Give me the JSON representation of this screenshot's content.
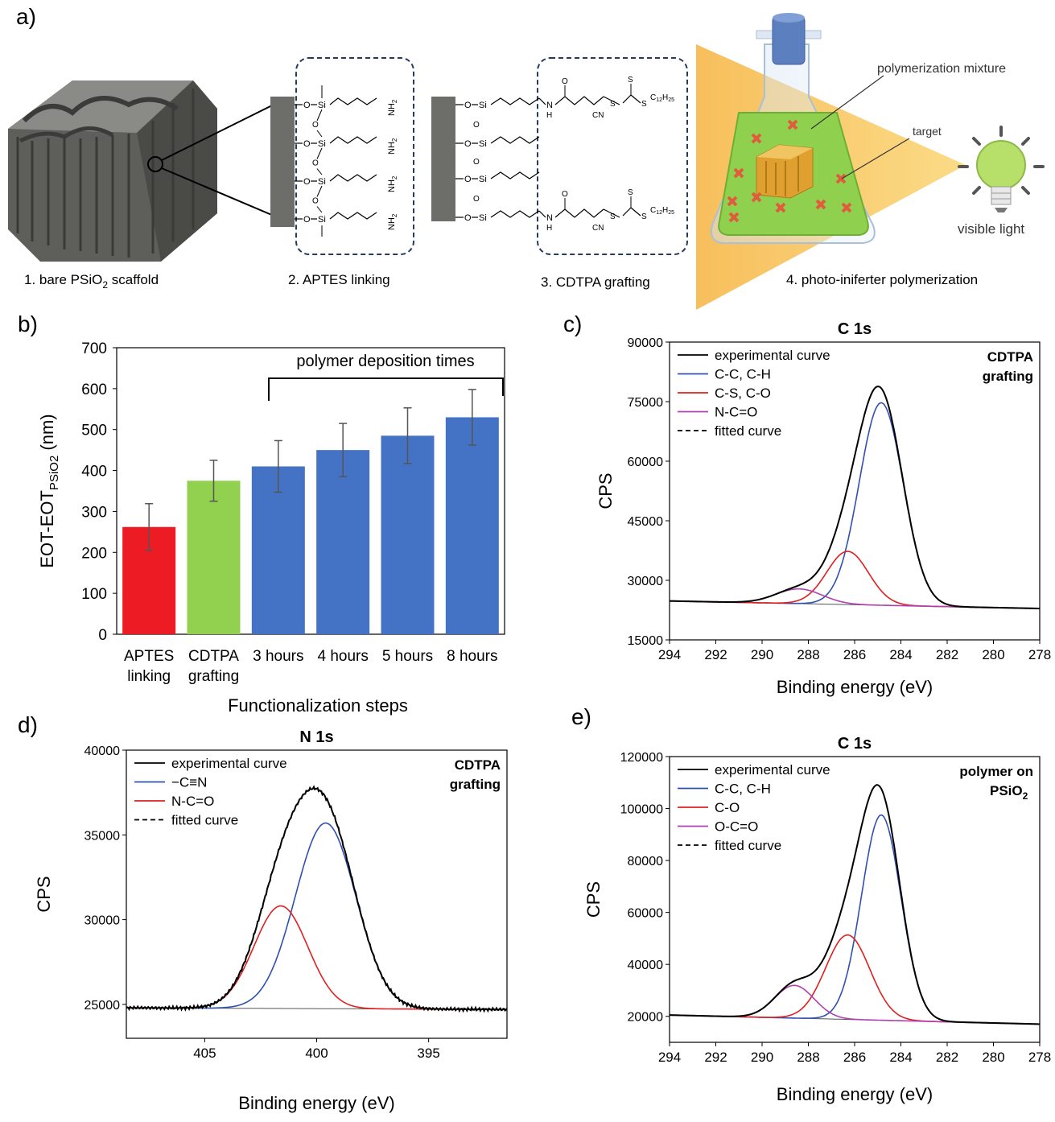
{
  "panel_letters": [
    "a)",
    "b)",
    "c)",
    "d)",
    "e)"
  ],
  "panel_a": {
    "step_labels": [
      "1. bare PSiO",
      "2",
      " scaffold",
      "2. APTES linking",
      "3. CDTPA grafting",
      "4. photo-iniferter polymerization"
    ],
    "annotations": [
      "polymerization mixture",
      "target",
      "visible light"
    ],
    "chem_text": {
      "o": "O",
      "si": "Si",
      "nh": "NH",
      "sub2": "2",
      "n": "N",
      "h": "H",
      "cn": "CN",
      "s": "S",
      "c12h25": "C12H25",
      "c": "C",
      "c_sub": "12",
      "h_sub": "25"
    },
    "colors": {
      "scaffold": "#6d6d6a",
      "light_cone": "#f7c35a",
      "flask_liquid": "#8fd14f",
      "target_cube": "#e0a030",
      "cross_marks": "#e05c3c",
      "bulb": "#b7e06b",
      "stopper": "#5b7fbf",
      "dashed_box": "#243a5e"
    }
  },
  "chart_data": [
    {
      "panel": "b)",
      "type": "bar",
      "categories": [
        [
          "APTES",
          "linking"
        ],
        [
          "CDTPA",
          "grafting"
        ],
        [
          "3 hours"
        ],
        [
          "4 hours"
        ],
        [
          "5 hours"
        ],
        [
          "8 hours"
        ]
      ],
      "values": [
        262,
        375,
        410,
        450,
        485,
        530
      ],
      "error": [
        57,
        50,
        63,
        65,
        68,
        68
      ],
      "colors": [
        "#ed1c24",
        "#92d050",
        "#4472c4",
        "#4472c4",
        "#4472c4",
        "#4472c4"
      ],
      "ylim": [
        0,
        700
      ],
      "yticks": [
        0,
        100,
        200,
        300,
        400,
        500,
        600,
        700
      ],
      "ylabel": {
        "main": "EOT-EOT",
        "sub": "PSiO2",
        "unit": " (nm)"
      },
      "xlabel": "Functionalization steps",
      "bracket_label": "polymer deposition times"
    },
    {
      "panel": "c)",
      "type": "line",
      "title": "C 1s",
      "xlabel": "Binding energy (eV)",
      "ylabel": "CPS",
      "xlim": [
        294,
        278
      ],
      "xticks": [
        294,
        292,
        290,
        288,
        286,
        284,
        282,
        280,
        278
      ],
      "ylim": [
        15000,
        90000
      ],
      "yticks": [
        15000,
        30000,
        45000,
        60000,
        75000,
        90000
      ],
      "corner_label": [
        "CDTPA",
        "grafting"
      ],
      "legend": "top-left",
      "baseline": {
        "x": [
          294,
          278
        ],
        "y": [
          24800,
          22900
        ]
      },
      "peaks": [
        {
          "name": "C-C, C-H",
          "center": 284.85,
          "height": 51000,
          "sigma": 0.95,
          "color": "#3050b0"
        },
        {
          "name": "C-S, C-O",
          "center": 286.3,
          "height": 13400,
          "sigma": 0.9,
          "color": "#e02020"
        },
        {
          "name": "N-C=O",
          "center": 288.4,
          "height": 3700,
          "sigma": 1.0,
          "color": "#b040b0"
        }
      ],
      "series": [
        {
          "name": "experimental curve",
          "color": "#000000",
          "dash": ""
        },
        {
          "name": "C-C, C-H",
          "color": "#3050b0",
          "dash": ""
        },
        {
          "name": "C-S, C-O",
          "color": "#e02020",
          "dash": ""
        },
        {
          "name": "N-C=O",
          "color": "#b040b0",
          "dash": ""
        },
        {
          "name": "fitted curve",
          "color": "#000000",
          "dash": "6,4"
        }
      ]
    },
    {
      "panel": "d)",
      "type": "line",
      "title": "N 1s",
      "xlabel": "Binding energy (eV)",
      "ylabel": "CPS",
      "xlim": [
        408.5,
        391.5
      ],
      "xticks": [
        405,
        400,
        395
      ],
      "ylim": [
        23000,
        40000
      ],
      "yticks": [
        25000,
        30000,
        35000,
        40000
      ],
      "corner_label": [
        "CDTPA",
        "grafting"
      ],
      "legend": "top-left",
      "baseline": {
        "x": [
          408.5,
          391.5
        ],
        "y": [
          24800,
          24700
        ]
      },
      "noise_amplitude": 60,
      "peaks": [
        {
          "name": "−C≡N",
          "center": 399.6,
          "height": 10950,
          "sigma": 1.35,
          "color": "#3050b0"
        },
        {
          "name": "N-C=O",
          "center": 401.6,
          "height": 6050,
          "sigma": 1.2,
          "color": "#e02020"
        }
      ],
      "series": [
        {
          "name": "experimental curve",
          "color": "#000000",
          "dash": ""
        },
        {
          "name": "−C≡N",
          "color": "#3050b0",
          "dash": ""
        },
        {
          "name": "N-C=O",
          "color": "#e02020",
          "dash": ""
        },
        {
          "name": "fitted curve",
          "color": "#000000",
          "dash": "6,4"
        }
      ]
    },
    {
      "panel": "e)",
      "type": "line",
      "title": "C 1s",
      "xlabel": "Binding energy (eV)",
      "ylabel": "CPS",
      "xlim": [
        294,
        278
      ],
      "xticks": [
        294,
        292,
        290,
        288,
        286,
        284,
        282,
        280,
        278
      ],
      "ylim": [
        10000,
        120000
      ],
      "yticks": [
        20000,
        40000,
        60000,
        80000,
        100000,
        120000
      ],
      "corner_label": [
        "polymer on",
        "PSiO",
        "2"
      ],
      "legend": "top-left",
      "baseline": {
        "x": [
          294,
          278
        ],
        "y": [
          20500,
          17000
        ]
      },
      "peaks": [
        {
          "name": "C-C, C-H",
          "center": 284.85,
          "height": 79000,
          "sigma": 0.85,
          "color": "#3050b0"
        },
        {
          "name": "C-O",
          "center": 286.3,
          "height": 32500,
          "sigma": 0.95,
          "color": "#e02020"
        },
        {
          "name": "O-C=O",
          "center": 288.6,
          "height": 12600,
          "sigma": 0.85,
          "color": "#b040b0"
        }
      ],
      "series": [
        {
          "name": "experimental curve",
          "color": "#000000",
          "dash": ""
        },
        {
          "name": "C-C, C-H",
          "color": "#3050b0",
          "dash": ""
        },
        {
          "name": "C-O",
          "color": "#e02020",
          "dash": ""
        },
        {
          "name": "O-C=O",
          "color": "#b040b0",
          "dash": ""
        },
        {
          "name": "fitted curve",
          "color": "#000000",
          "dash": "6,4"
        }
      ]
    }
  ]
}
